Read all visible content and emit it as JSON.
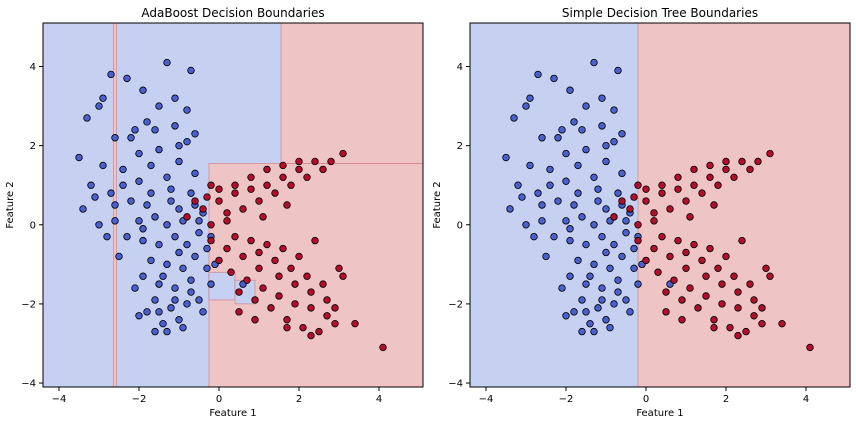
{
  "colors": {
    "class0_fill": "#4a5fd0",
    "class1_fill": "#b40e2a",
    "region0": "#c6d0f0",
    "region1": "#efc4c4",
    "boundary": "#d07a80"
  },
  "chart_data": [
    {
      "type": "scatter",
      "title": "AdaBoost Decision Boundaries",
      "xlabel": "Feature 1",
      "ylabel": "Feature 2",
      "xlim": [
        -4.4,
        5.1
      ],
      "ylim": [
        -4.1,
        5.1
      ],
      "xticks": [
        -4,
        -2,
        0,
        2,
        4
      ],
      "yticks": [
        -4,
        -2,
        0,
        2,
        4
      ],
      "grid": false,
      "legend": "none",
      "decision_regions": [
        {
          "class": 1,
          "x": [
            -2.64,
            -2.56
          ],
          "y": [
            -4.1,
            5.1
          ]
        },
        {
          "class": 1,
          "x": [
            -0.25,
            5.1
          ],
          "y": [
            -4.1,
            1.55
          ]
        },
        {
          "class": 1,
          "x": [
            1.55,
            5.1
          ],
          "y": [
            1.55,
            5.1
          ]
        },
        {
          "class": 0,
          "x": [
            -0.25,
            0.4
          ],
          "y": [
            -1.9,
            -1.2
          ]
        },
        {
          "class": 0,
          "x": [
            0.4,
            0.9
          ],
          "y": [
            -2.0,
            -1.4
          ]
        }
      ]
    },
    {
      "type": "scatter",
      "title": "Simple Decision Tree Boundaries",
      "xlabel": "Feature 1",
      "ylabel": "Feature 2",
      "xlim": [
        -4.4,
        5.1
      ],
      "ylim": [
        -4.1,
        5.1
      ],
      "xticks": [
        -4,
        -2,
        0,
        2,
        4
      ],
      "yticks": [
        -4,
        -2,
        0,
        2,
        4
      ],
      "grid": false,
      "legend": "none",
      "decision_regions": [
        {
          "class": 1,
          "x": [
            -0.2,
            5.1
          ],
          "y": [
            -4.1,
            5.1
          ]
        }
      ]
    }
  ],
  "scatter_points": {
    "class0": [
      [
        -2.9,
        3.2
      ],
      [
        -3.0,
        3.0
      ],
      [
        -3.3,
        2.7
      ],
      [
        -2.7,
        3.8
      ],
      [
        -2.3,
        3.7
      ],
      [
        -1.3,
        4.1
      ],
      [
        -0.7,
        3.9
      ],
      [
        -1.1,
        3.2
      ],
      [
        -1.9,
        3.4
      ],
      [
        -1.5,
        3.0
      ],
      [
        -1.8,
        2.6
      ],
      [
        -0.8,
        2.9
      ],
      [
        -1.1,
        2.5
      ],
      [
        -2.1,
        2.4
      ],
      [
        -0.6,
        2.3
      ],
      [
        -3.5,
        1.7
      ],
      [
        -3.2,
        1.0
      ],
      [
        -2.9,
        1.5
      ],
      [
        -2.4,
        1.4
      ],
      [
        -2.0,
        1.8
      ],
      [
        -1.5,
        1.9
      ],
      [
        -1.0,
        1.6
      ],
      [
        -0.8,
        2.1
      ],
      [
        -2.6,
        2.2
      ],
      [
        -2.2,
        2.2
      ],
      [
        -1.7,
        1.5
      ],
      [
        -1.3,
        1.2
      ],
      [
        -2.0,
        1.1
      ],
      [
        -2.7,
        0.8
      ],
      [
        -3.1,
        0.7
      ],
      [
        -3.4,
        0.4
      ],
      [
        -3.0,
        0.0
      ],
      [
        -2.6,
        0.5
      ],
      [
        -2.2,
        0.6
      ],
      [
        -1.8,
        0.5
      ],
      [
        -2.0,
        0.1
      ],
      [
        -1.6,
        0.2
      ],
      [
        -1.3,
        0.0
      ],
      [
        -1.9,
        -0.4
      ],
      [
        -1.5,
        -0.5
      ],
      [
        -1.1,
        -0.3
      ],
      [
        -0.8,
        -0.5
      ],
      [
        -1.7,
        -0.9
      ],
      [
        -1.3,
        -1.0
      ],
      [
        -0.9,
        -1.1
      ],
      [
        -0.6,
        -0.8
      ],
      [
        -1.9,
        -1.3
      ],
      [
        -1.5,
        -1.5
      ],
      [
        -1.1,
        -1.6
      ],
      [
        -0.7,
        -1.4
      ],
      [
        -1.6,
        -1.9
      ],
      [
        -1.2,
        -2.1
      ],
      [
        -0.8,
        -2.0
      ],
      [
        -1.8,
        -2.2
      ],
      [
        -1.4,
        -2.5
      ],
      [
        -1.0,
        -2.4
      ],
      [
        -1.3,
        -2.7
      ],
      [
        -0.9,
        -2.6
      ],
      [
        -1.6,
        -2.7
      ],
      [
        -0.5,
        -1.9
      ],
      [
        -0.5,
        -0.2
      ],
      [
        -0.3,
        -0.6
      ],
      [
        -0.1,
        -1.0
      ],
      [
        -0.2,
        -1.5
      ],
      [
        -0.4,
        0.3
      ],
      [
        -1.0,
        0.4
      ],
      [
        -0.7,
        0.8
      ],
      [
        -1.2,
        0.6
      ],
      [
        -2.3,
        -0.3
      ],
      [
        -2.5,
        -0.8
      ],
      [
        -2.1,
        -1.6
      ],
      [
        -1.2,
        0.9
      ],
      [
        -0.6,
        1.3
      ],
      [
        -1.6,
        2.4
      ],
      [
        -1.0,
        2.0
      ],
      [
        -0.5,
        0.1
      ],
      [
        -0.3,
        -1.1
      ],
      [
        0.6,
        -1.5
      ],
      [
        -2.6,
        0.1
      ],
      [
        -1.9,
        -0.1
      ],
      [
        -1.4,
        -1.3
      ],
      [
        -1.0,
        -0.7
      ],
      [
        -0.7,
        -1.7
      ],
      [
        -1.1,
        -1.9
      ],
      [
        -1.5,
        -2.2
      ],
      [
        -0.4,
        -2.2
      ],
      [
        -0.2,
        -0.3
      ],
      [
        -0.6,
        0.5
      ],
      [
        -1.7,
        0.8
      ],
      [
        -2.4,
        1.0
      ],
      [
        -2.8,
        -0.3
      ],
      [
        -2.0,
        -2.3
      ],
      [
        -0.9,
        0.1
      ]
    ],
    "class1": [
      [
        1.6,
        1.2
      ],
      [
        2.0,
        1.4
      ],
      [
        2.4,
        1.6
      ],
      [
        2.8,
        1.6
      ],
      [
        3.1,
        1.8
      ],
      [
        1.2,
        1.0
      ],
      [
        0.8,
        0.9
      ],
      [
        0.4,
        0.8
      ],
      [
        0.0,
        0.6
      ],
      [
        -0.4,
        0.4
      ],
      [
        -0.8,
        0.2
      ],
      [
        1.4,
        0.8
      ],
      [
        1.8,
        1.0
      ],
      [
        2.2,
        1.2
      ],
      [
        2.6,
        1.4
      ],
      [
        1.0,
        0.6
      ],
      [
        0.6,
        0.4
      ],
      [
        0.2,
        0.3
      ],
      [
        -0.2,
        0.0
      ],
      [
        0.4,
        1.0
      ],
      [
        0.8,
        1.2
      ],
      [
        1.2,
        1.4
      ],
      [
        1.6,
        1.5
      ],
      [
        2.0,
        1.6
      ],
      [
        0.0,
        0.9
      ],
      [
        -0.6,
        0.6
      ],
      [
        -0.2,
        1.0
      ],
      [
        -0.2,
        -0.4
      ],
      [
        0.2,
        -0.6
      ],
      [
        0.6,
        -0.8
      ],
      [
        1.0,
        -0.7
      ],
      [
        1.4,
        -0.9
      ],
      [
        1.8,
        -1.1
      ],
      [
        2.2,
        -1.3
      ],
      [
        2.6,
        -1.5
      ],
      [
        3.0,
        -1.1
      ],
      [
        0.4,
        -0.3
      ],
      [
        0.8,
        -0.4
      ],
      [
        1.2,
        -0.5
      ],
      [
        1.6,
        -0.6
      ],
      [
        2.0,
        -0.8
      ],
      [
        0.0,
        -0.9
      ],
      [
        0.3,
        -1.2
      ],
      [
        0.7,
        -1.4
      ],
      [
        1.1,
        -1.6
      ],
      [
        1.5,
        -1.8
      ],
      [
        1.9,
        -2.0
      ],
      [
        2.3,
        -2.1
      ],
      [
        2.7,
        -2.3
      ],
      [
        0.5,
        -1.7
      ],
      [
        0.9,
        -1.9
      ],
      [
        1.3,
        -2.1
      ],
      [
        1.7,
        -2.4
      ],
      [
        2.1,
        -2.6
      ],
      [
        2.5,
        -2.7
      ],
      [
        2.9,
        -2.5
      ],
      [
        1.5,
        -1.3
      ],
      [
        1.9,
        -1.5
      ],
      [
        2.3,
        -1.7
      ],
      [
        2.7,
        -1.9
      ],
      [
        3.1,
        -1.3
      ],
      [
        0.9,
        -2.4
      ],
      [
        1.7,
        -2.6
      ],
      [
        2.3,
        -2.8
      ],
      [
        3.4,
        -2.5
      ],
      [
        4.1,
        -3.1
      ],
      [
        1.0,
        -1.1
      ],
      [
        0.2,
        0.1
      ],
      [
        -0.3,
        0.7
      ],
      [
        1.1,
        0.2
      ],
      [
        1.7,
        0.5
      ],
      [
        2.4,
        -0.4
      ],
      [
        0.5,
        -2.2
      ],
      [
        2.9,
        -2.1
      ]
    ]
  }
}
